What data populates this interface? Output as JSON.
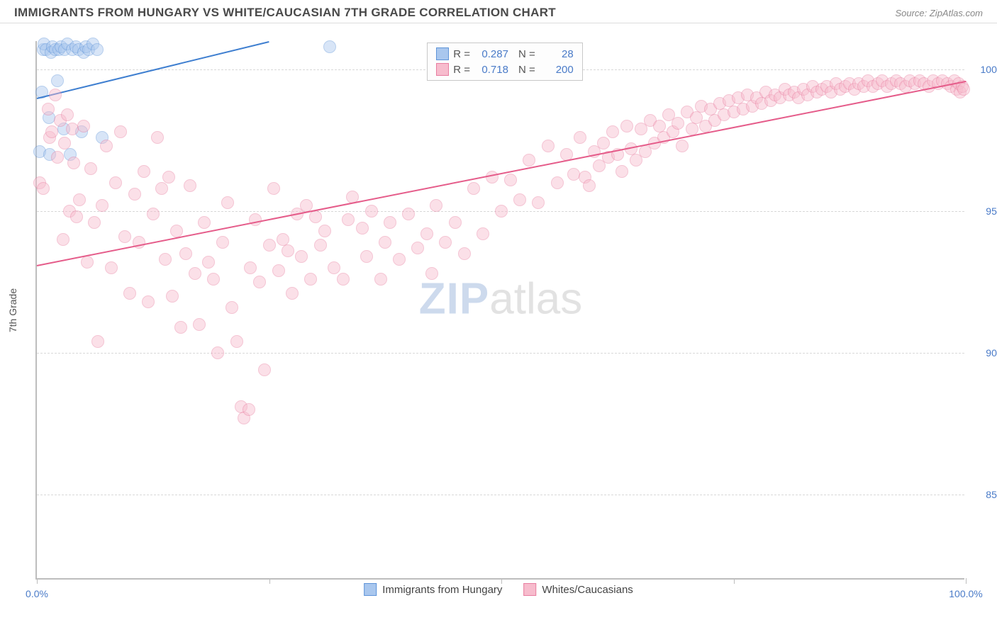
{
  "header": {
    "title": "IMMIGRANTS FROM HUNGARY VS WHITE/CAUCASIAN 7TH GRADE CORRELATION CHART",
    "source": "Source: ZipAtlas.com"
  },
  "watermark": {
    "part1": "ZIP",
    "part2": "atlas"
  },
  "chart": {
    "type": "scatter",
    "y_axis_label": "7th Grade",
    "background_color": "#ffffff",
    "grid_color": "#d8d8d8",
    "axis_color": "#bdbdbd",
    "tick_label_color": "#4a7bc8",
    "tick_fontsize": 14,
    "xlim": [
      0,
      100
    ],
    "ylim": [
      82,
      101
    ],
    "x_ticks": [
      0,
      25,
      50,
      75,
      100
    ],
    "x_tick_labels": [
      "0.0%",
      "",
      "",
      "",
      "100.0%"
    ],
    "y_ticks": [
      85,
      90,
      95,
      100
    ],
    "y_tick_labels": [
      "85.0%",
      "90.0%",
      "95.0%",
      "100.0%"
    ],
    "marker_radius": 9,
    "marker_opacity": 0.45,
    "stats_box": {
      "border_color": "#c8c8c8",
      "rows": [
        {
          "swatch_fill": "#a9c7ee",
          "swatch_border": "#5f94d8",
          "r_label": "R =",
          "r_value": "0.287",
          "n_label": "N =",
          "n_value": "28"
        },
        {
          "swatch_fill": "#f7bccd",
          "swatch_border": "#e87da0",
          "r_label": "R =",
          "r_value": "0.718",
          "n_label": "N =",
          "n_value": "200"
        }
      ]
    },
    "bottom_legend": [
      {
        "swatch_fill": "#a9c7ee",
        "swatch_border": "#5f94d8",
        "label": "Immigrants from Hungary"
      },
      {
        "swatch_fill": "#f7bccd",
        "swatch_border": "#e87da0",
        "label": "Whites/Caucasians"
      }
    ],
    "series": [
      {
        "name": "Immigrants from Hungary",
        "fill": "#a9c7ee",
        "stroke": "#5f94d8",
        "trend_color": "#3f7fd0",
        "trend": {
          "x1": 0,
          "y1": 99.0,
          "x2": 25,
          "y2": 101.0
        },
        "points": [
          [
            0.3,
            97.1
          ],
          [
            0.5,
            99.2
          ],
          [
            0.7,
            100.7
          ],
          [
            0.8,
            100.9
          ],
          [
            1.0,
            100.7
          ],
          [
            1.3,
            98.3
          ],
          [
            1.4,
            97.0
          ],
          [
            1.5,
            100.6
          ],
          [
            1.7,
            100.8
          ],
          [
            2.0,
            100.7
          ],
          [
            2.2,
            99.6
          ],
          [
            2.4,
            100.7
          ],
          [
            2.6,
            100.8
          ],
          [
            2.9,
            97.9
          ],
          [
            3.0,
            100.7
          ],
          [
            3.3,
            100.9
          ],
          [
            3.6,
            97.0
          ],
          [
            3.8,
            100.7
          ],
          [
            4.2,
            100.8
          ],
          [
            4.5,
            100.7
          ],
          [
            4.8,
            97.8
          ],
          [
            5.0,
            100.6
          ],
          [
            5.3,
            100.8
          ],
          [
            5.6,
            100.7
          ],
          [
            6.0,
            100.9
          ],
          [
            6.5,
            100.7
          ],
          [
            7.0,
            97.6
          ],
          [
            31.5,
            100.8
          ]
        ]
      },
      {
        "name": "Whites/Caucasians",
        "fill": "#f7bccd",
        "stroke": "#e87da0",
        "trend_color": "#e55c8a",
        "trend": {
          "x1": 0,
          "y1": 93.1,
          "x2": 100,
          "y2": 99.6
        },
        "points": [
          [
            0.3,
            96.0
          ],
          [
            0.7,
            95.8
          ],
          [
            1.2,
            98.6
          ],
          [
            1.4,
            97.6
          ],
          [
            1.6,
            97.8
          ],
          [
            2.0,
            99.1
          ],
          [
            2.2,
            96.9
          ],
          [
            2.5,
            98.2
          ],
          [
            2.8,
            94.0
          ],
          [
            3.0,
            97.4
          ],
          [
            3.3,
            98.4
          ],
          [
            3.5,
            95.0
          ],
          [
            3.8,
            97.9
          ],
          [
            4.0,
            96.7
          ],
          [
            4.3,
            94.8
          ],
          [
            4.6,
            95.4
          ],
          [
            5.0,
            98.0
          ],
          [
            5.4,
            93.2
          ],
          [
            5.8,
            96.5
          ],
          [
            6.2,
            94.6
          ],
          [
            6.6,
            90.4
          ],
          [
            7.0,
            95.2
          ],
          [
            7.5,
            97.3
          ],
          [
            8.0,
            93.0
          ],
          [
            8.5,
            96.0
          ],
          [
            9.0,
            97.8
          ],
          [
            9.5,
            94.1
          ],
          [
            10.0,
            92.1
          ],
          [
            10.5,
            95.6
          ],
          [
            11.0,
            93.9
          ],
          [
            11.5,
            96.4
          ],
          [
            12.0,
            91.8
          ],
          [
            12.5,
            94.9
          ],
          [
            13.0,
            97.6
          ],
          [
            13.4,
            95.8
          ],
          [
            13.8,
            93.3
          ],
          [
            14.2,
            96.2
          ],
          [
            14.6,
            92.0
          ],
          [
            15.0,
            94.3
          ],
          [
            15.5,
            90.9
          ],
          [
            16.0,
            93.5
          ],
          [
            16.5,
            95.9
          ],
          [
            17.0,
            92.8
          ],
          [
            17.5,
            91.0
          ],
          [
            18.0,
            94.6
          ],
          [
            18.5,
            93.2
          ],
          [
            19.0,
            92.6
          ],
          [
            19.5,
            90.0
          ],
          [
            20.0,
            93.9
          ],
          [
            20.5,
            95.3
          ],
          [
            21.0,
            91.6
          ],
          [
            21.5,
            90.4
          ],
          [
            22.0,
            88.1
          ],
          [
            22.3,
            87.7
          ],
          [
            22.8,
            88.0
          ],
          [
            23.0,
            93.0
          ],
          [
            23.5,
            94.7
          ],
          [
            24.0,
            92.5
          ],
          [
            24.5,
            89.4
          ],
          [
            25.0,
            93.8
          ],
          [
            25.5,
            95.8
          ],
          [
            26.0,
            92.9
          ],
          [
            26.5,
            94.0
          ],
          [
            27.0,
            93.6
          ],
          [
            27.5,
            92.1
          ],
          [
            28.0,
            94.9
          ],
          [
            28.5,
            93.4
          ],
          [
            29.0,
            95.2
          ],
          [
            29.5,
            92.6
          ],
          [
            30.0,
            94.8
          ],
          [
            30.5,
            93.8
          ],
          [
            31.0,
            94.3
          ],
          [
            32.0,
            93.0
          ],
          [
            33.0,
            92.6
          ],
          [
            33.5,
            94.7
          ],
          [
            34.0,
            95.5
          ],
          [
            35.0,
            94.4
          ],
          [
            35.5,
            93.4
          ],
          [
            36.0,
            95.0
          ],
          [
            37.0,
            92.6
          ],
          [
            37.5,
            93.9
          ],
          [
            38.0,
            94.6
          ],
          [
            39.0,
            93.3
          ],
          [
            40.0,
            94.9
          ],
          [
            41.0,
            93.7
          ],
          [
            42.0,
            94.2
          ],
          [
            42.5,
            92.8
          ],
          [
            43.0,
            95.2
          ],
          [
            44.0,
            93.9
          ],
          [
            45.0,
            94.6
          ],
          [
            46.0,
            93.5
          ],
          [
            47.0,
            95.8
          ],
          [
            48.0,
            94.2
          ],
          [
            49.0,
            96.2
          ],
          [
            50.0,
            95.0
          ],
          [
            51.0,
            96.1
          ],
          [
            52.0,
            95.4
          ],
          [
            53.0,
            96.8
          ],
          [
            54.0,
            95.3
          ],
          [
            55.0,
            97.3
          ],
          [
            56.0,
            96.0
          ],
          [
            57.0,
            97.0
          ],
          [
            57.8,
            96.3
          ],
          [
            58.5,
            97.6
          ],
          [
            59.0,
            96.2
          ],
          [
            59.5,
            95.9
          ],
          [
            60.0,
            97.1
          ],
          [
            60.5,
            96.6
          ],
          [
            61.0,
            97.4
          ],
          [
            61.5,
            96.9
          ],
          [
            62.0,
            97.8
          ],
          [
            62.5,
            97.0
          ],
          [
            63.0,
            96.4
          ],
          [
            63.5,
            98.0
          ],
          [
            64.0,
            97.2
          ],
          [
            64.5,
            96.8
          ],
          [
            65.0,
            97.9
          ],
          [
            65.5,
            97.1
          ],
          [
            66.0,
            98.2
          ],
          [
            66.5,
            97.4
          ],
          [
            67.0,
            98.0
          ],
          [
            67.5,
            97.6
          ],
          [
            68.0,
            98.4
          ],
          [
            68.5,
            97.8
          ],
          [
            69.0,
            98.1
          ],
          [
            69.5,
            97.3
          ],
          [
            70.0,
            98.5
          ],
          [
            70.5,
            97.9
          ],
          [
            71.0,
            98.3
          ],
          [
            71.5,
            98.7
          ],
          [
            72.0,
            98.0
          ],
          [
            72.5,
            98.6
          ],
          [
            73.0,
            98.2
          ],
          [
            73.5,
            98.8
          ],
          [
            74.0,
            98.4
          ],
          [
            74.5,
            98.9
          ],
          [
            75.0,
            98.5
          ],
          [
            75.5,
            99.0
          ],
          [
            76.0,
            98.6
          ],
          [
            76.5,
            99.1
          ],
          [
            77.0,
            98.7
          ],
          [
            77.5,
            99.0
          ],
          [
            78.0,
            98.8
          ],
          [
            78.5,
            99.2
          ],
          [
            79.0,
            98.9
          ],
          [
            79.5,
            99.1
          ],
          [
            80.0,
            99.0
          ],
          [
            80.5,
            99.3
          ],
          [
            81.0,
            99.1
          ],
          [
            81.5,
            99.2
          ],
          [
            82.0,
            99.0
          ],
          [
            82.5,
            99.3
          ],
          [
            83.0,
            99.1
          ],
          [
            83.5,
            99.4
          ],
          [
            84.0,
            99.2
          ],
          [
            84.5,
            99.3
          ],
          [
            85.0,
            99.4
          ],
          [
            85.5,
            99.2
          ],
          [
            86.0,
            99.5
          ],
          [
            86.5,
            99.3
          ],
          [
            87.0,
            99.4
          ],
          [
            87.5,
            99.5
          ],
          [
            88.0,
            99.3
          ],
          [
            88.5,
            99.5
          ],
          [
            89.0,
            99.4
          ],
          [
            89.5,
            99.6
          ],
          [
            90.0,
            99.4
          ],
          [
            90.5,
            99.5
          ],
          [
            91.0,
            99.6
          ],
          [
            91.5,
            99.4
          ],
          [
            92.0,
            99.5
          ],
          [
            92.5,
            99.6
          ],
          [
            93.0,
            99.5
          ],
          [
            93.5,
            99.4
          ],
          [
            94.0,
            99.6
          ],
          [
            94.5,
            99.5
          ],
          [
            95.0,
            99.6
          ],
          [
            95.5,
            99.5
          ],
          [
            96.0,
            99.4
          ],
          [
            96.5,
            99.6
          ],
          [
            97.0,
            99.5
          ],
          [
            97.5,
            99.6
          ],
          [
            98.0,
            99.5
          ],
          [
            98.4,
            99.4
          ],
          [
            98.8,
            99.6
          ],
          [
            99.0,
            99.3
          ],
          [
            99.2,
            99.5
          ],
          [
            99.4,
            99.2
          ],
          [
            99.6,
            99.4
          ],
          [
            99.8,
            99.3
          ]
        ]
      }
    ]
  }
}
